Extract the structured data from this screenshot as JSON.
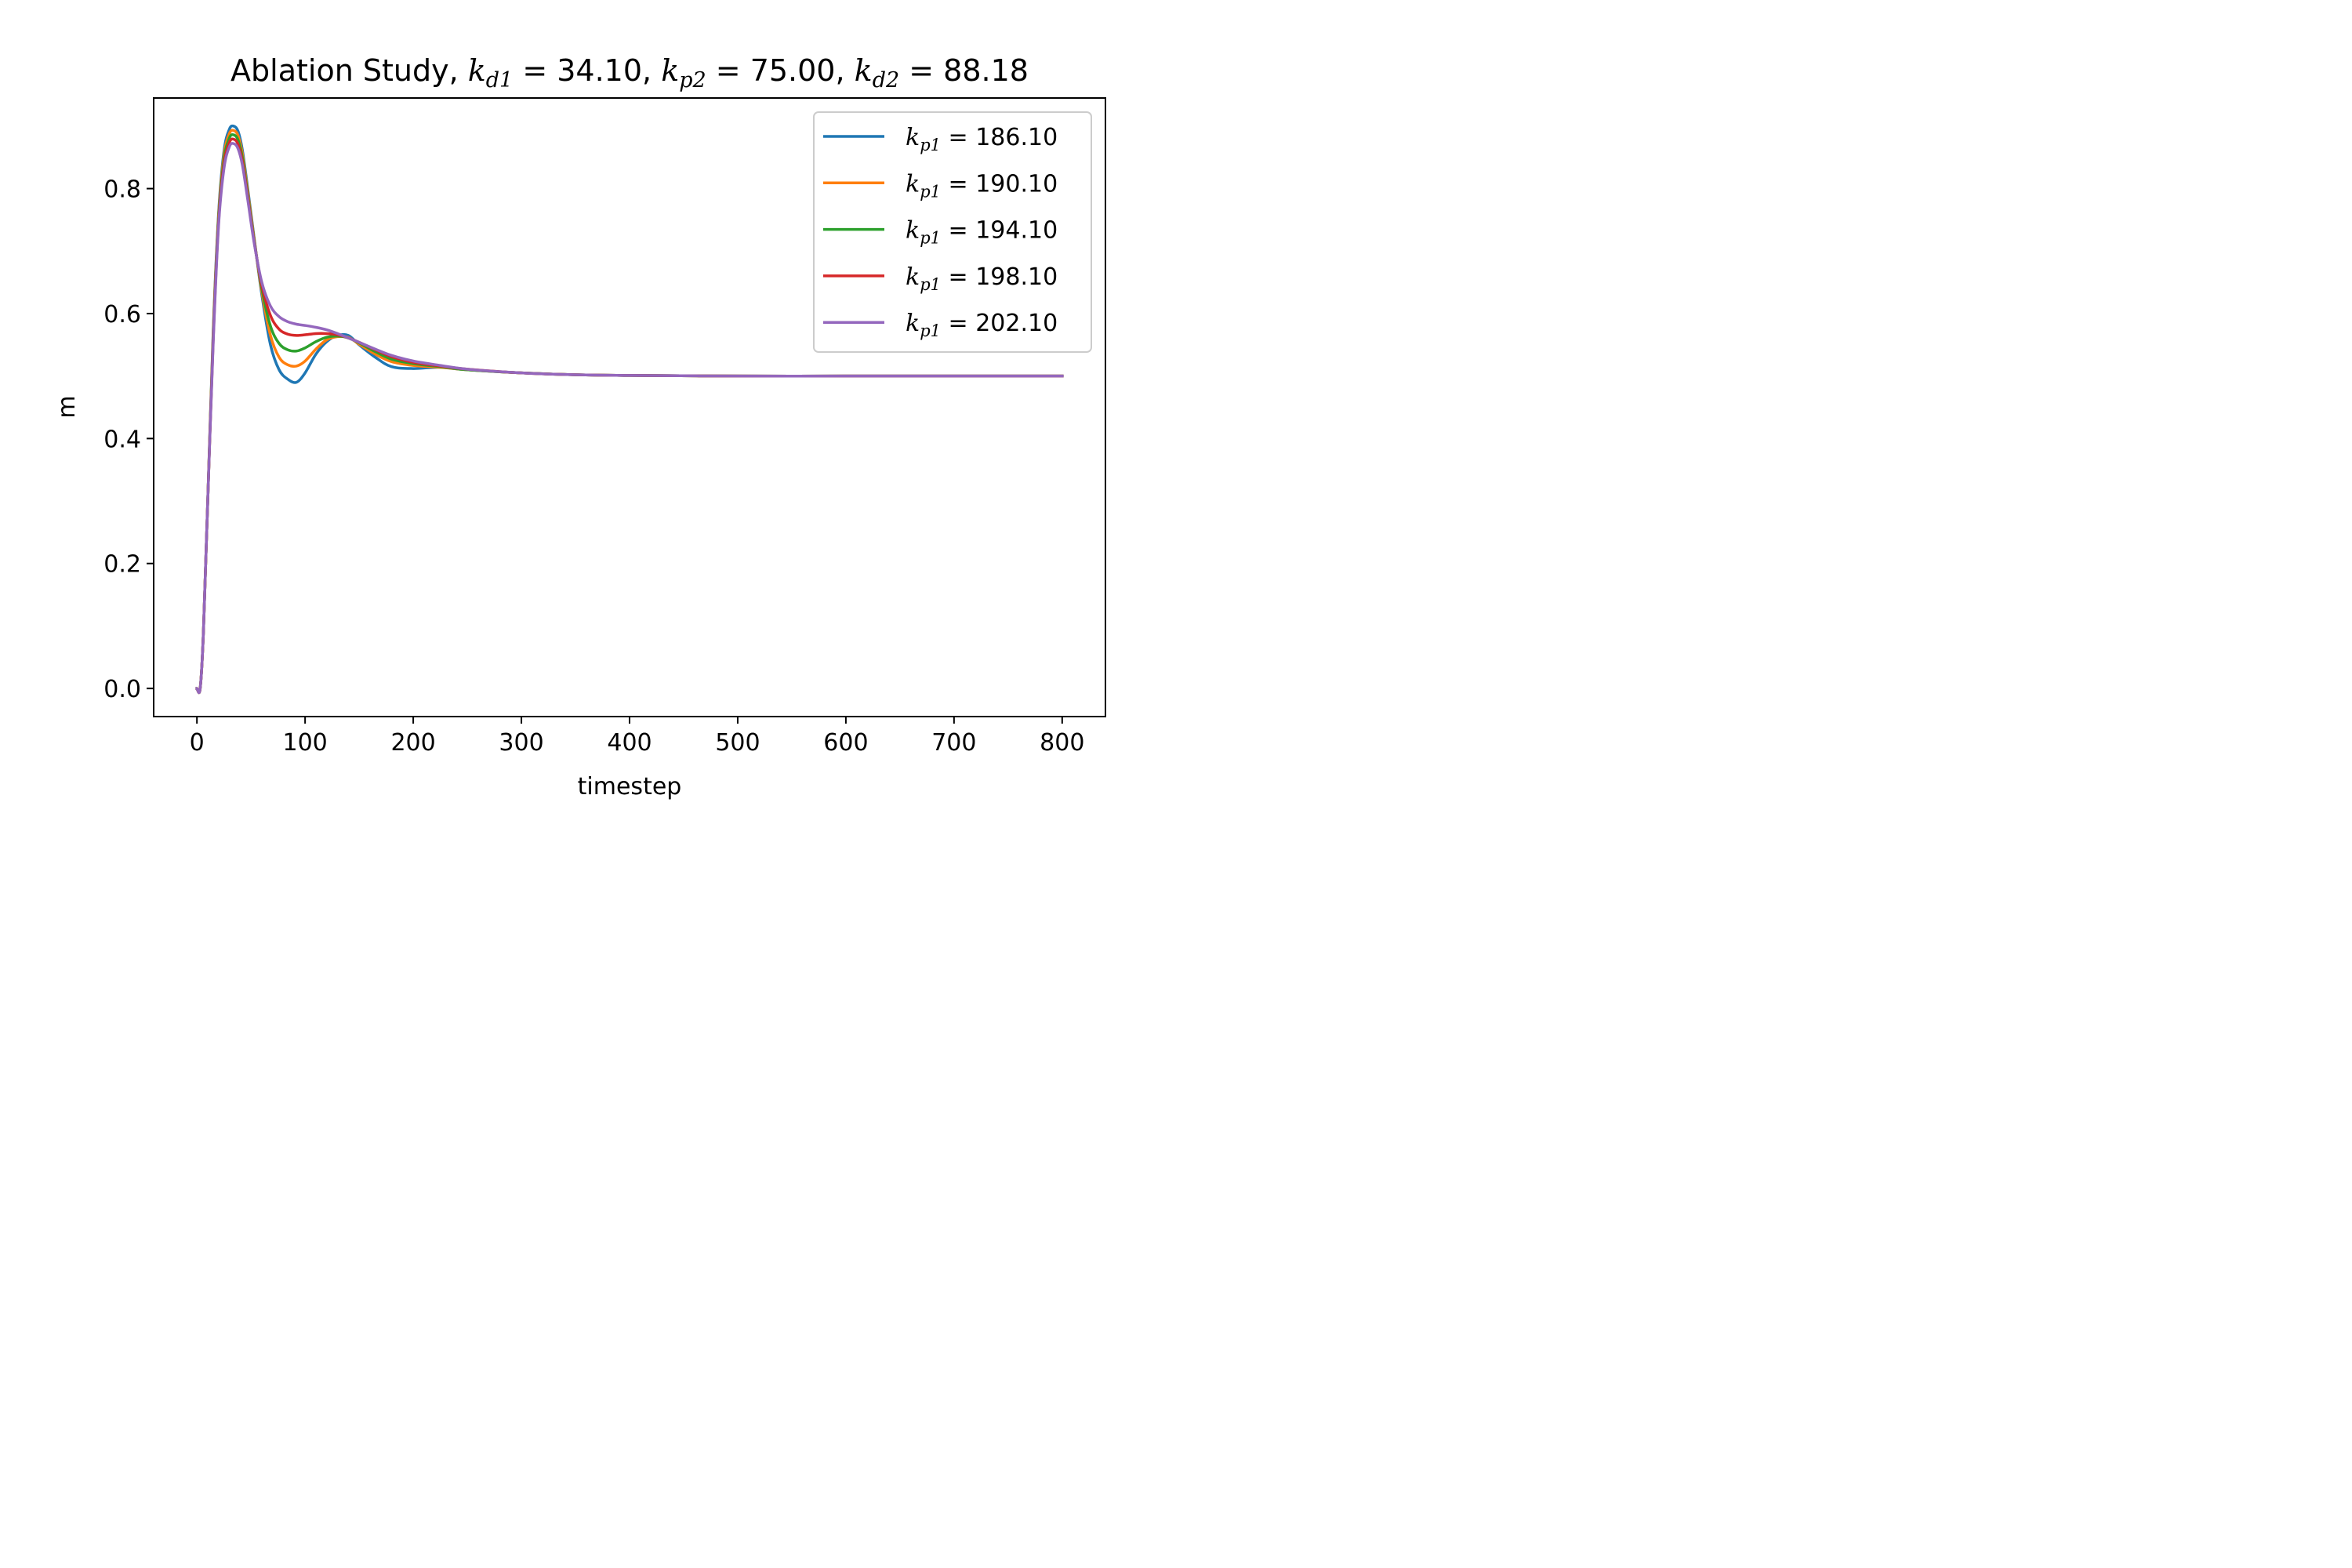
{
  "chart_data": {
    "type": "line",
    "title": {
      "text": "Ablation Study, ",
      "params": [
        {
          "sym": "k",
          "sub": "d1",
          "value": "34.10"
        },
        {
          "sym": "k",
          "sub": "p2",
          "value": "75.00"
        },
        {
          "sym": "k",
          "sub": "d2",
          "value": "88.18"
        }
      ]
    },
    "xlabel": "timestep",
    "ylabel": "m",
    "xlim": [
      -40,
      840
    ],
    "ylim": [
      -0.045,
      0.945
    ],
    "xticks": [
      0,
      100,
      200,
      300,
      400,
      500,
      600,
      700,
      800
    ],
    "xtick_labels": [
      "0",
      "100",
      "200",
      "300",
      "400",
      "500",
      "600",
      "700",
      "800"
    ],
    "yticks": [
      0.0,
      0.2,
      0.4,
      0.6,
      0.8
    ],
    "ytick_labels": [
      "0.0",
      "0.2",
      "0.4",
      "0.6",
      "0.8"
    ],
    "grid": false,
    "legend_position": "top-right",
    "x": [
      0,
      3,
      6,
      10,
      15,
      20,
      25,
      30,
      34,
      38,
      42,
      47,
      53,
      60,
      68,
      76,
      84,
      92,
      100,
      110,
      120,
      130,
      140,
      150,
      165,
      180,
      200,
      225,
      250,
      300,
      350,
      400,
      500,
      600,
      700,
      800
    ],
    "series": [
      {
        "name": "k_p1 = 186.10",
        "legend_sym": "k",
        "legend_sub": "p1",
        "legend_value": "186.10",
        "color": "#1f77b4",
        "values": [
          0.0,
          0.0,
          0.09,
          0.3,
          0.57,
          0.76,
          0.86,
          0.895,
          0.9,
          0.892,
          0.862,
          0.8,
          0.72,
          0.63,
          0.55,
          0.51,
          0.495,
          0.49,
          0.505,
          0.535,
          0.555,
          0.565,
          0.565,
          0.55,
          0.53,
          0.515,
          0.512,
          0.514,
          0.51,
          0.505,
          0.502,
          0.501,
          0.5,
          0.5,
          0.5,
          0.5
        ]
      },
      {
        "name": "k_p1 = 190.10",
        "legend_sym": "k",
        "legend_sub": "p1",
        "legend_value": "190.10",
        "color": "#ff7f0e",
        "values": [
          0.0,
          0.0,
          0.09,
          0.3,
          0.565,
          0.755,
          0.853,
          0.888,
          0.893,
          0.885,
          0.856,
          0.795,
          0.718,
          0.635,
          0.565,
          0.53,
          0.518,
          0.516,
          0.524,
          0.543,
          0.558,
          0.563,
          0.562,
          0.551,
          0.535,
          0.523,
          0.517,
          0.514,
          0.51,
          0.505,
          0.502,
          0.501,
          0.5,
          0.5,
          0.5,
          0.5
        ]
      },
      {
        "name": "k_p1 = 194.10",
        "legend_sym": "k",
        "legend_sub": "p1",
        "legend_value": "194.10",
        "color": "#2ca02c",
        "values": [
          0.0,
          0.0,
          0.09,
          0.3,
          0.56,
          0.75,
          0.846,
          0.881,
          0.886,
          0.878,
          0.85,
          0.79,
          0.716,
          0.64,
          0.58,
          0.552,
          0.542,
          0.54,
          0.545,
          0.555,
          0.562,
          0.564,
          0.561,
          0.553,
          0.539,
          0.527,
          0.52,
          0.515,
          0.51,
          0.505,
          0.502,
          0.501,
          0.5,
          0.5,
          0.5,
          0.5
        ]
      },
      {
        "name": "k_p1 = 198.10",
        "legend_sym": "k",
        "legend_sub": "p1",
        "legend_value": "198.10",
        "color": "#d62728",
        "values": [
          0.0,
          0.0,
          0.09,
          0.3,
          0.555,
          0.745,
          0.839,
          0.874,
          0.879,
          0.871,
          0.844,
          0.786,
          0.714,
          0.645,
          0.597,
          0.575,
          0.567,
          0.565,
          0.566,
          0.568,
          0.568,
          0.566,
          0.561,
          0.554,
          0.542,
          0.531,
          0.522,
          0.516,
          0.511,
          0.505,
          0.502,
          0.501,
          0.5,
          0.5,
          0.5,
          0.5
        ]
      },
      {
        "name": "k_p1 = 202.10",
        "legend_sym": "k",
        "legend_sub": "p1",
        "legend_value": "202.10",
        "color": "#9467bd",
        "values": [
          0.0,
          0.0,
          0.09,
          0.3,
          0.55,
          0.74,
          0.832,
          0.867,
          0.872,
          0.864,
          0.838,
          0.782,
          0.712,
          0.65,
          0.612,
          0.595,
          0.587,
          0.583,
          0.581,
          0.578,
          0.574,
          0.568,
          0.561,
          0.554,
          0.543,
          0.533,
          0.524,
          0.517,
          0.511,
          0.505,
          0.502,
          0.501,
          0.5,
          0.5,
          0.5,
          0.5
        ]
      }
    ]
  }
}
